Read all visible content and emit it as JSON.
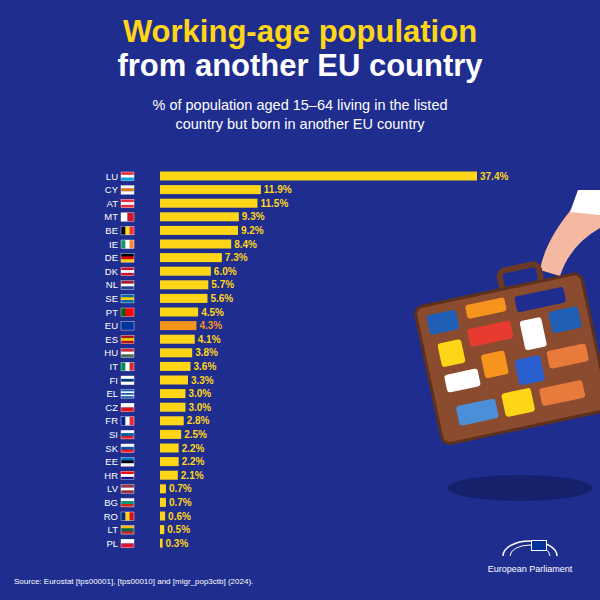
{
  "chart_data": {
    "type": "bar",
    "orientation": "horizontal",
    "title": [
      "Working-age population",
      "from another EU country"
    ],
    "subtitle": [
      "% of population aged 15–64 living in the listed",
      "country but born in another EU country"
    ],
    "source": "Source: Eurostat [tps00001], [tps00010] and [migr_pop3ctb] (2024).",
    "logo_text": "European Parliament",
    "categories": [
      "LU",
      "CY",
      "AT",
      "MT",
      "BE",
      "IE",
      "DE",
      "DK",
      "NL",
      "SE",
      "PT",
      "EU",
      "ES",
      "HU",
      "IT",
      "FI",
      "EL",
      "CZ",
      "FR",
      "SI",
      "SK",
      "EE",
      "HR",
      "LV",
      "BG",
      "RO",
      "LT",
      "PL"
    ],
    "values": [
      37.4,
      11.9,
      11.5,
      9.3,
      9.2,
      8.4,
      7.3,
      6.0,
      5.7,
      5.6,
      4.5,
      4.3,
      4.1,
      3.8,
      3.6,
      3.3,
      3.0,
      3.0,
      2.8,
      2.5,
      2.2,
      2.2,
      2.1,
      0.7,
      0.7,
      0.6,
      0.5,
      0.3
    ],
    "value_labels": [
      "37.4%",
      "11.9%",
      "11.5%",
      "9.3%",
      "9.2%",
      "8.4%",
      "7.3%",
      "6.0%",
      "5.7%",
      "5.6%",
      "4.5%",
      "4.3%",
      "4.1%",
      "3.8%",
      "3.6%",
      "3.3%",
      "3.0%",
      "3.0%",
      "2.8%",
      "2.5%",
      "2.2%",
      "2.2%",
      "2.1%",
      "0.7%",
      "0.7%",
      "0.6%",
      "0.5%",
      "0.3%"
    ],
    "colors": [
      "#ffd617",
      "#ffd617",
      "#ffd617",
      "#ffd617",
      "#ffd617",
      "#ffd617",
      "#ffd617",
      "#ffd617",
      "#ffd617",
      "#ffd617",
      "#ffd617",
      "#f7941d",
      "#ffd617",
      "#ffd617",
      "#ffd617",
      "#ffd617",
      "#ffd617",
      "#ffd617",
      "#ffd617",
      "#ffd617",
      "#ffd617",
      "#ffd617",
      "#ffd617",
      "#ffd617",
      "#ffd617",
      "#ffd617",
      "#ffd617",
      "#ffd617"
    ],
    "xlim": [
      0,
      37.4
    ],
    "data_labels": true,
    "tick_labels": false,
    "grid": false
  }
}
